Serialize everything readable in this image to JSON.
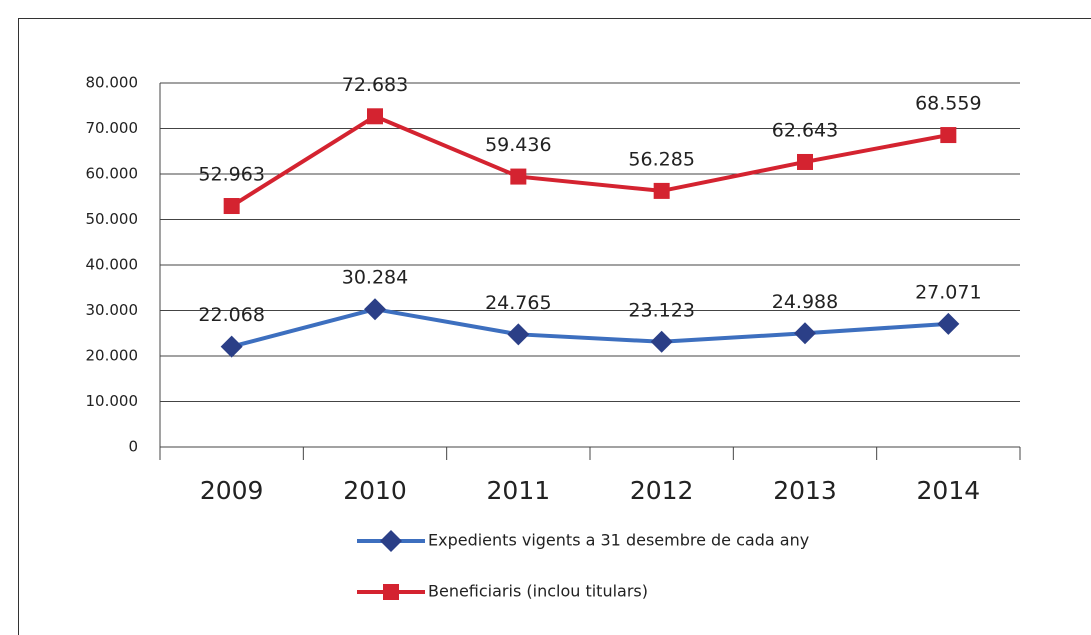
{
  "chart_data": {
    "type": "line",
    "categories": [
      "2009",
      "2010",
      "2011",
      "2012",
      "2013",
      "2014"
    ],
    "series": [
      {
        "name": "Expedients vigents a 31 desembre de cada any",
        "color": "#3d6fbf",
        "marker_color": "#2b3f87",
        "marker": "diamond",
        "values": [
          22068,
          30284,
          24765,
          23123,
          24988,
          27071
        ],
        "value_labels": [
          "22.068",
          "30.284",
          "24.765",
          "23.123",
          "24.988",
          "27.071"
        ]
      },
      {
        "name": "Beneficiaris (inclou titulars)",
        "color": "#d42330",
        "marker_color": "#d42330",
        "marker": "square",
        "values": [
          52963,
          72683,
          59436,
          56285,
          62643,
          68559
        ],
        "value_labels": [
          "52.963",
          "72.683",
          "59.436",
          "56.285",
          "62.643",
          "68.559"
        ]
      }
    ],
    "ylim": [
      0,
      80000
    ],
    "yticks": [
      0,
      {
        "value": 10000,
        "label": "10.000"
      },
      {
        "value": 20000,
        "label": "20.000"
      },
      {
        "value": 30000,
        "label": "30.000"
      },
      {
        "value": 40000,
        "label": "40.000"
      },
      {
        "value": 50000,
        "label": "50.000"
      },
      {
        "value": 60000,
        "label": "60.000"
      },
      {
        "value": 70000,
        "label": "70.000"
      },
      {
        "value": 80000,
        "label": "80.000"
      }
    ],
    "grid": true
  }
}
